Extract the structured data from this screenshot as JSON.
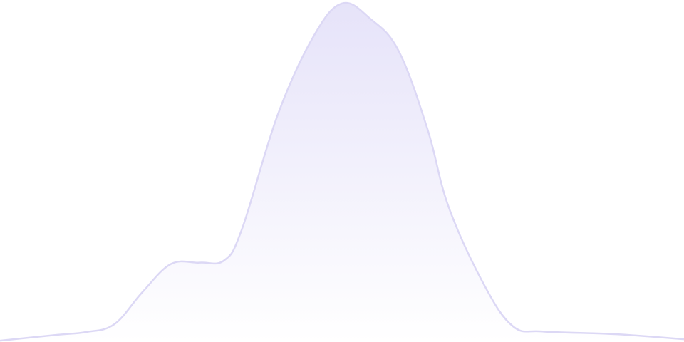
{
  "chart_data": {
    "type": "area",
    "title": "",
    "xlabel": "",
    "ylabel": "",
    "xlim": [
      0,
      100
    ],
    "ylim": [
      0,
      100
    ],
    "grid": false,
    "legend": "none",
    "smooth": true,
    "x": [
      0,
      8.3,
      12.5,
      16.7,
      20.8,
      25,
      29.2,
      32.8,
      35.4,
      40.6,
      45.8,
      50,
      54.2,
      58.3,
      62.5,
      65.6,
      70.8,
      75,
      79.2,
      87.5,
      91.7,
      100
    ],
    "y": [
      0.4,
      2.1,
      2.9,
      5.2,
      14.6,
      22.9,
      23.3,
      24,
      33.3,
      66.7,
      89.6,
      99.4,
      94.8,
      85.4,
      62.5,
      39.6,
      16.7,
      4.6,
      3.1,
      2.5,
      2.1,
      0.8
    ],
    "colors": {
      "stroke": "#dcd8f5",
      "fill_top": "#e6e3f9",
      "fill_bottom": "#ffffff"
    }
  }
}
